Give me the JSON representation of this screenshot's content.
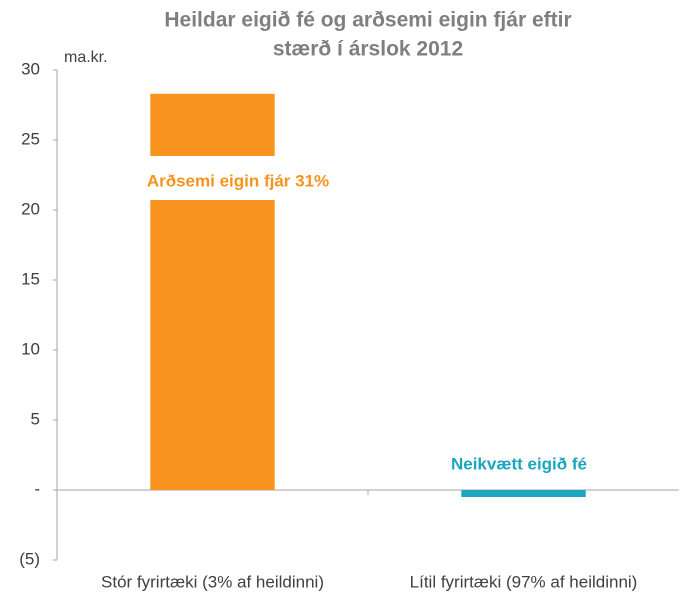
{
  "chart_data": {
    "type": "bar",
    "title": [
      "Heildar eigið fé og arðsemi eigin fjár eftir",
      "stærð í árslok 2012"
    ],
    "y_axis_label": "ma.kr.",
    "categories": [
      "Stór fyrirtæki (3% af heildinni)",
      "Lítil fyrirtæki (97% af heildinni)"
    ],
    "values": [
      28.3,
      -0.5
    ],
    "colors": [
      "#f7931e",
      "#1ba6bf"
    ],
    "annotations": [
      {
        "text": "Arðsemi eigin fjár 31%",
        "color": "#f7931e"
      },
      {
        "text": "Neikvætt eigið fé",
        "color": "#1ba6bf"
      }
    ],
    "ylim": [
      -5,
      30
    ],
    "yticks": [
      {
        "value": -5,
        "label": "(5)"
      },
      {
        "value": 0,
        "label": "-"
      },
      5,
      10,
      15,
      20,
      25,
      30
    ],
    "grid": false
  }
}
